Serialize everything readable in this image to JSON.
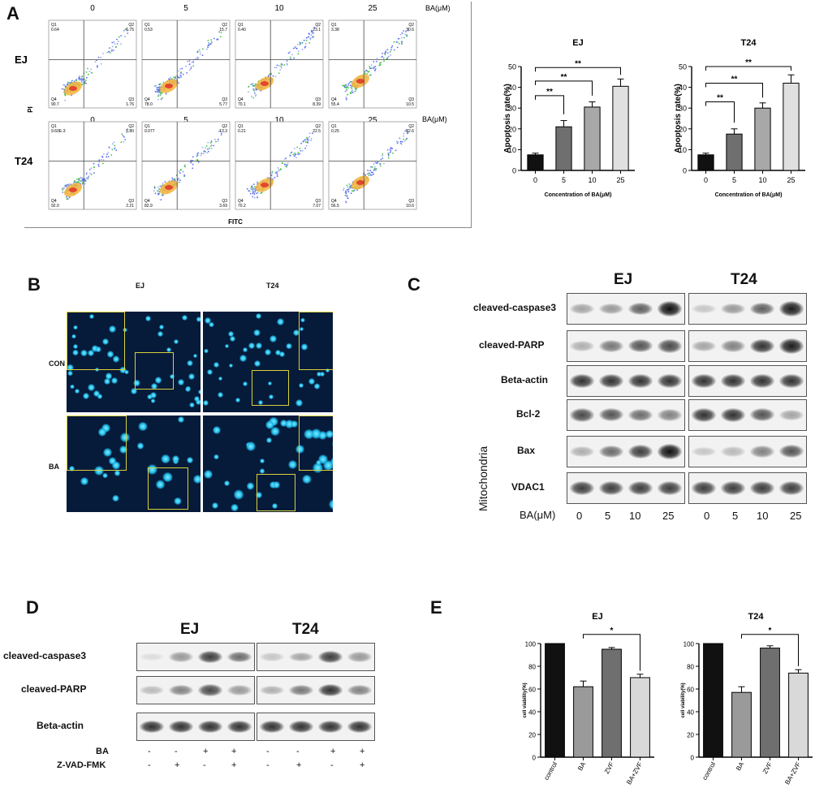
{
  "panel_labels": {
    "A": "A",
    "B": "B",
    "C": "C",
    "D": "D",
    "E": "E"
  },
  "panelA": {
    "concentrations": [
      "0",
      "5",
      "10",
      "25"
    ],
    "unit_label": "BA(μM)",
    "rows": [
      {
        "label": "EJ",
        "quadrants": [
          {
            "q1": "Q1",
            "v1": "0.64",
            "q2": "Q2",
            "v2": "6.75",
            "q3": "Q3",
            "v3": "1.76",
            "q4": "Q4",
            "v4": "90.7"
          },
          {
            "q1": "Q1",
            "v1": "0.53",
            "q2": "Q2",
            "v2": "15.7",
            "q3": "Q3",
            "v3": "5.77",
            "q4": "Q4",
            "v4": "78.0"
          },
          {
            "q1": "Q1",
            "v1": "0.40",
            "q2": "Q2",
            "v2": "23.1",
            "q3": "Q3",
            "v3": "8.39",
            "q4": "Q4",
            "v4": "70.1"
          },
          {
            "q1": "Q1",
            "v1": "3.38",
            "q2": "Q2",
            "v2": "30.6",
            "q3": "Q3",
            "v3": "10.5",
            "q4": "Q4",
            "v4": "55.4"
          }
        ]
      },
      {
        "label": "T24",
        "quadrants": [
          {
            "q1": "Q1",
            "v1": "9.60E-3",
            "q2": "Q2",
            "v2": "5.80",
            "q3": "Q3",
            "v3": "2.21",
            "q4": "Q4",
            "v4": "92.0"
          },
          {
            "q1": "Q1",
            "v1": "0.077",
            "q2": "Q2",
            "v2": "13.3",
            "q3": "Q3",
            "v3": "3.69",
            "q4": "Q4",
            "v4": "82.9"
          },
          {
            "q1": "Q1",
            "v1": "0.21",
            "q2": "Q2",
            "v2": "22.5",
            "q3": "Q3",
            "v3": "7.07",
            "q4": "Q4",
            "v4": "70.2"
          },
          {
            "q1": "Q1",
            "v1": "0.25",
            "q2": "Q2",
            "v2": "32.6",
            "q3": "Q3",
            "v3": "10.6",
            "q4": "Q4",
            "v4": "56.5"
          }
        ]
      }
    ],
    "y_axis": "PI",
    "x_axis": "FITC"
  },
  "chart_data": [
    {
      "type": "bar",
      "title": "EJ",
      "categories": [
        "0",
        "5",
        "10",
        "25"
      ],
      "values": [
        7.5,
        21,
        30.5,
        40.5
      ],
      "errors": [
        0.8,
        3,
        2.5,
        3.5
      ],
      "ylabel": "Apoptosis rate(%)",
      "xlabel": "Concentration of BA(μM)",
      "ylim": [
        0,
        50
      ],
      "yticks": [
        "0",
        "10",
        "20",
        "30",
        "40",
        "50"
      ],
      "colors": [
        "#111111",
        "#6f6f6f",
        "#a8a8a8",
        "#e0e0e0"
      ],
      "sig": [
        "**",
        "**",
        "**"
      ]
    },
    {
      "type": "bar",
      "title": "T24",
      "categories": [
        "0",
        "5",
        "10",
        "25"
      ],
      "values": [
        7.5,
        17.5,
        30,
        42
      ],
      "errors": [
        0.8,
        2.5,
        2.5,
        4
      ],
      "ylabel": "Apoptosis rate(%)",
      "xlabel": "Concentration of BA(μM)",
      "ylim": [
        0,
        50
      ],
      "yticks": [
        "0",
        "10",
        "20",
        "30",
        "40",
        "50"
      ],
      "colors": [
        "#111111",
        "#6f6f6f",
        "#a8a8a8",
        "#e0e0e0"
      ],
      "sig": [
        "**",
        "**",
        "**"
      ]
    },
    {
      "type": "bar",
      "title": "EJ",
      "categories": [
        "control",
        "BA",
        "ZVF",
        "BA+ZVF"
      ],
      "values": [
        100,
        62,
        95,
        70
      ],
      "errors": [
        0,
        5,
        1.5,
        3
      ],
      "ylabel": "cell viability(%)",
      "xlabel": "",
      "ylim": [
        0,
        100
      ],
      "yticks": [
        "0",
        "20",
        "40",
        "60",
        "80",
        "100"
      ],
      "colors": [
        "#111111",
        "#9a9a9a",
        "#6f6f6f",
        "#d9d9d9"
      ],
      "sig": [
        "*"
      ]
    },
    {
      "type": "bar",
      "title": "T24",
      "categories": [
        "control",
        "BA",
        "ZVF",
        "BA+ZVF"
      ],
      "values": [
        100,
        57,
        96,
        74
      ],
      "errors": [
        0,
        5,
        2,
        3
      ],
      "ylabel": "cell viability(%)",
      "xlabel": "",
      "ylim": [
        0,
        100
      ],
      "yticks": [
        "0",
        "20",
        "40",
        "60",
        "80",
        "100"
      ],
      "colors": [
        "#111111",
        "#9a9a9a",
        "#6f6f6f",
        "#d9d9d9"
      ],
      "sig": [
        "*"
      ]
    }
  ],
  "panelB": {
    "cols": [
      "EJ",
      "T24"
    ],
    "rows": [
      "CON",
      "BA"
    ]
  },
  "panelC": {
    "cells": [
      "EJ",
      "T24"
    ],
    "proteins": [
      "cleaved-caspase3",
      "cleaved-PARP",
      "Beta-actin",
      "Bcl-2",
      "Bax",
      "VDAC1"
    ],
    "mito_label": "Mitochondria",
    "ba_label": "BA(μM)",
    "doses": [
      "0",
      "5",
      "10",
      "25"
    ],
    "intensity": {
      "EJ": [
        [
          0.35,
          0.4,
          0.65,
          1.0
        ],
        [
          0.3,
          0.55,
          0.7,
          0.75
        ],
        [
          0.85,
          0.85,
          0.85,
          0.85
        ],
        [
          0.75,
          0.7,
          0.6,
          0.5
        ],
        [
          0.3,
          0.6,
          0.8,
          1.0
        ],
        [
          0.8,
          0.8,
          0.8,
          0.8
        ]
      ],
      "T24": [
        [
          0.2,
          0.4,
          0.65,
          0.95
        ],
        [
          0.35,
          0.5,
          0.85,
          0.95
        ],
        [
          0.85,
          0.85,
          0.85,
          0.85
        ],
        [
          0.85,
          0.85,
          0.7,
          0.35
        ],
        [
          0.2,
          0.25,
          0.5,
          0.7
        ],
        [
          0.8,
          0.8,
          0.8,
          0.8
        ]
      ]
    }
  },
  "panelD": {
    "cells": [
      "EJ",
      "T24"
    ],
    "proteins": [
      "cleaved-caspase3",
      "cleaved-PARP",
      "Beta-actin"
    ],
    "treatments": [
      {
        "label": "BA",
        "values": [
          "-",
          "-",
          "+",
          "+"
        ]
      },
      {
        "label": "Z-VAD-FMK",
        "values": [
          "-",
          "+",
          "-",
          "+"
        ]
      }
    ],
    "intensity": {
      "EJ": [
        [
          0.1,
          0.4,
          0.8,
          0.6
        ],
        [
          0.25,
          0.5,
          0.75,
          0.4
        ],
        [
          0.85,
          0.85,
          0.85,
          0.85
        ]
      ],
      "T24": [
        [
          0.2,
          0.35,
          0.8,
          0.4
        ],
        [
          0.3,
          0.55,
          0.85,
          0.5
        ],
        [
          0.85,
          0.85,
          0.85,
          0.85
        ]
      ]
    }
  }
}
